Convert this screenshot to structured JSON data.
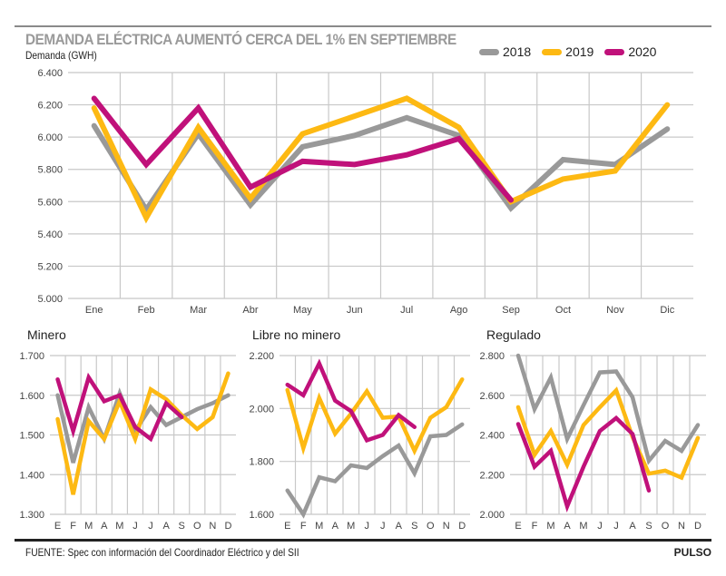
{
  "header": {
    "title": "DEMANDA ELÉCTRICA AUMENTÓ CERCA DEL 1% EN SEPTIEMBRE",
    "unit_label": "Demanda (GWH)"
  },
  "legend": [
    {
      "label": "2018",
      "color": "#999999"
    },
    {
      "label": "2019",
      "color": "#fdb913"
    },
    {
      "label": "2020",
      "color": "#c0117a"
    }
  ],
  "footer": {
    "source": "FUENTE: Spec con información del Coordinador Eléctrico y del SII",
    "brand": "PULSO"
  },
  "chart_data": [
    {
      "type": "line",
      "title": "Demanda",
      "ylabel": "Demanda (GWH)",
      "categories": [
        "Ene",
        "Feb",
        "Mar",
        "Abr",
        "May",
        "Jun",
        "Jul",
        "Ago",
        "Sep",
        "Oct",
        "Nov",
        "Dic"
      ],
      "ylim": [
        5000,
        6400
      ],
      "yticks": [
        5000,
        5200,
        5400,
        5600,
        5800,
        6000,
        6200,
        6400
      ],
      "ytick_labels": [
        "5.000",
        "5.200",
        "5.400",
        "5.600",
        "5.800",
        "6.000",
        "6.200",
        "6.400"
      ],
      "grid": true,
      "legend": "top-right",
      "series": [
        {
          "name": "2018",
          "color": "#999999",
          "values": [
            6070,
            5550,
            6020,
            5580,
            5940,
            6010,
            6120,
            6010,
            5560,
            5860,
            5830,
            6050
          ]
        },
        {
          "name": "2019",
          "color": "#fdb913",
          "values": [
            6180,
            5500,
            6060,
            5620,
            6020,
            6130,
            6240,
            6060,
            5600,
            5740,
            5790,
            6200
          ]
        },
        {
          "name": "2020",
          "color": "#c0117a",
          "values": [
            6240,
            5830,
            6180,
            5690,
            5850,
            5830,
            5890,
            5990,
            5610
          ]
        }
      ]
    },
    {
      "type": "line",
      "title": "Minero",
      "categories": [
        "E",
        "F",
        "M",
        "A",
        "M",
        "J",
        "J",
        "A",
        "S",
        "O",
        "N",
        "D"
      ],
      "ylim": [
        1300,
        1700
      ],
      "yticks": [
        1300,
        1400,
        1500,
        1600,
        1700
      ],
      "ytick_labels": [
        "1.300",
        "1.400",
        "1.500",
        "1.600",
        "1.700"
      ],
      "grid": true,
      "series": [
        {
          "name": "2018",
          "color": "#999999",
          "values": [
            1600,
            1430,
            1570,
            1490,
            1605,
            1510,
            1570,
            1525,
            1545,
            1565,
            1580,
            1600
          ]
        },
        {
          "name": "2019",
          "color": "#fdb913",
          "values": [
            1540,
            1350,
            1535,
            1490,
            1585,
            1490,
            1615,
            1590,
            1550,
            1515,
            1545,
            1655
          ]
        },
        {
          "name": "2020",
          "color": "#c0117a",
          "values": [
            1640,
            1510,
            1645,
            1585,
            1600,
            1520,
            1490,
            1580,
            1545
          ]
        }
      ]
    },
    {
      "type": "line",
      "title": "Libre no minero",
      "categories": [
        "E",
        "F",
        "M",
        "A",
        "M",
        "J",
        "J",
        "A",
        "S",
        "O",
        "N",
        "D"
      ],
      "ylim": [
        1600,
        2200
      ],
      "yticks": [
        1600,
        1800,
        2000,
        2200
      ],
      "ytick_labels": [
        "1.600",
        "1.800",
        "2.000",
        "2.200"
      ],
      "grid": true,
      "series": [
        {
          "name": "2018",
          "color": "#999999",
          "values": [
            1690,
            1600,
            1740,
            1725,
            1785,
            1775,
            1820,
            1860,
            1755,
            1895,
            1900,
            1940
          ]
        },
        {
          "name": "2019",
          "color": "#fdb913",
          "values": [
            2070,
            1850,
            2040,
            1905,
            1980,
            2065,
            1965,
            1970,
            1840,
            1965,
            2005,
            2110
          ]
        },
        {
          "name": "2020",
          "color": "#c0117a",
          "values": [
            2090,
            2050,
            2170,
            2030,
            1990,
            1880,
            1900,
            1975,
            1930
          ]
        }
      ]
    },
    {
      "type": "line",
      "title": "Regulado",
      "categories": [
        "E",
        "F",
        "M",
        "A",
        "M",
        "J",
        "J",
        "A",
        "S",
        "O",
        "N",
        "D"
      ],
      "ylim": [
        2000,
        2800
      ],
      "yticks": [
        2000,
        2200,
        2400,
        2600,
        2800
      ],
      "ytick_labels": [
        "2.000",
        "2.200",
        "2.400",
        "2.600",
        "2.800"
      ],
      "grid": true,
      "series": [
        {
          "name": "2018",
          "color": "#999999",
          "values": [
            2800,
            2530,
            2690,
            2380,
            2550,
            2715,
            2720,
            2590,
            2270,
            2370,
            2320,
            2450
          ]
        },
        {
          "name": "2019",
          "color": "#fdb913",
          "values": [
            2540,
            2300,
            2420,
            2250,
            2450,
            2540,
            2625,
            2390,
            2205,
            2220,
            2185,
            2385
          ]
        },
        {
          "name": "2020",
          "color": "#c0117a",
          "values": [
            2455,
            2240,
            2320,
            2040,
            2240,
            2420,
            2485,
            2405,
            2120
          ]
        }
      ]
    }
  ]
}
